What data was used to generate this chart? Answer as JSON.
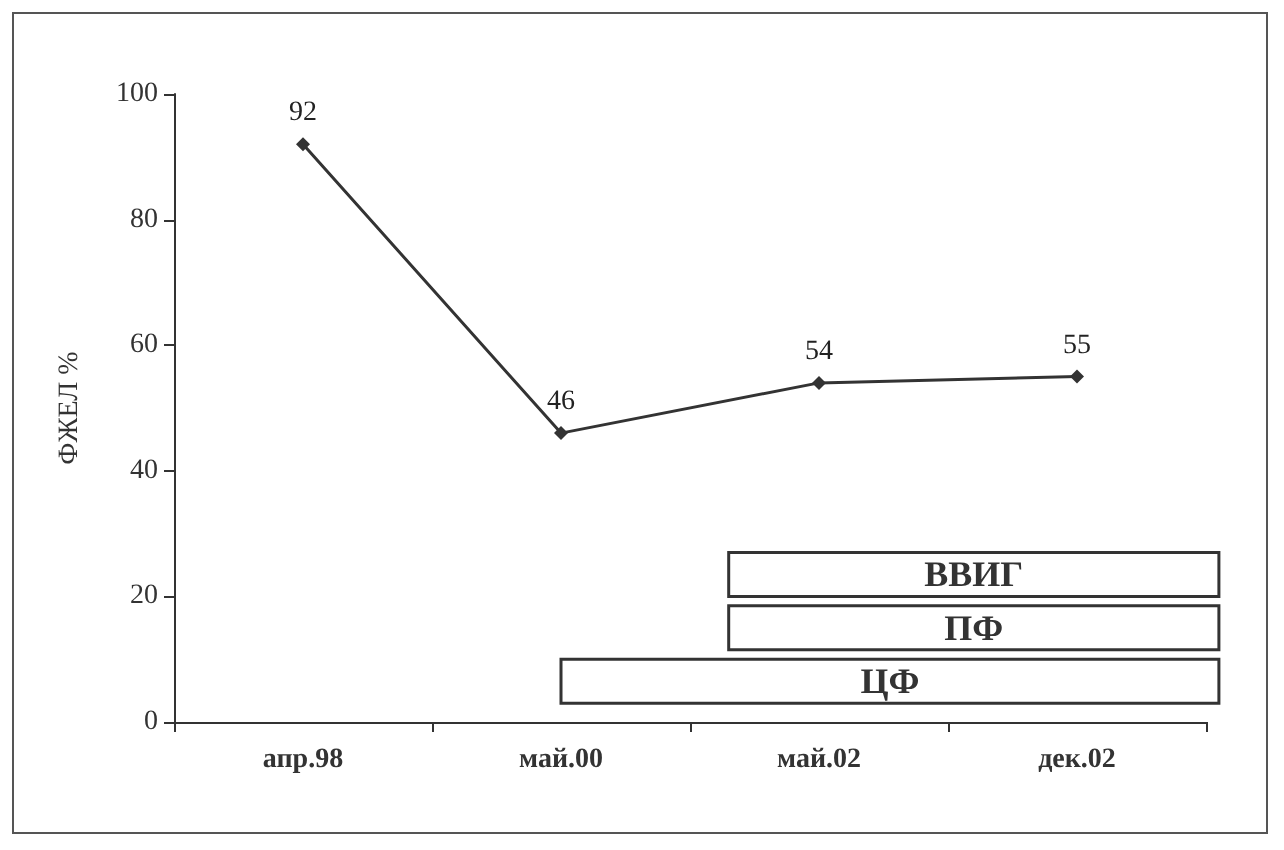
{
  "chart_data": {
    "type": "line",
    "ylabel": "ФЖЕЛ %",
    "categories": [
      "апр.98",
      "май.00",
      "май.02",
      "дек.02"
    ],
    "series": [
      {
        "color": "#333333",
        "values": [
          92,
          46,
          54,
          55
        ]
      }
    ],
    "ylim": [
      0,
      100
    ],
    "yticks": [
      0,
      20,
      40,
      60,
      80,
      100
    ],
    "grid": false,
    "marker": "diamond",
    "line_style": "solid",
    "data_labels": true,
    "annotations": [
      "ВВИГ",
      "ПФ",
      "ЦФ"
    ]
  }
}
